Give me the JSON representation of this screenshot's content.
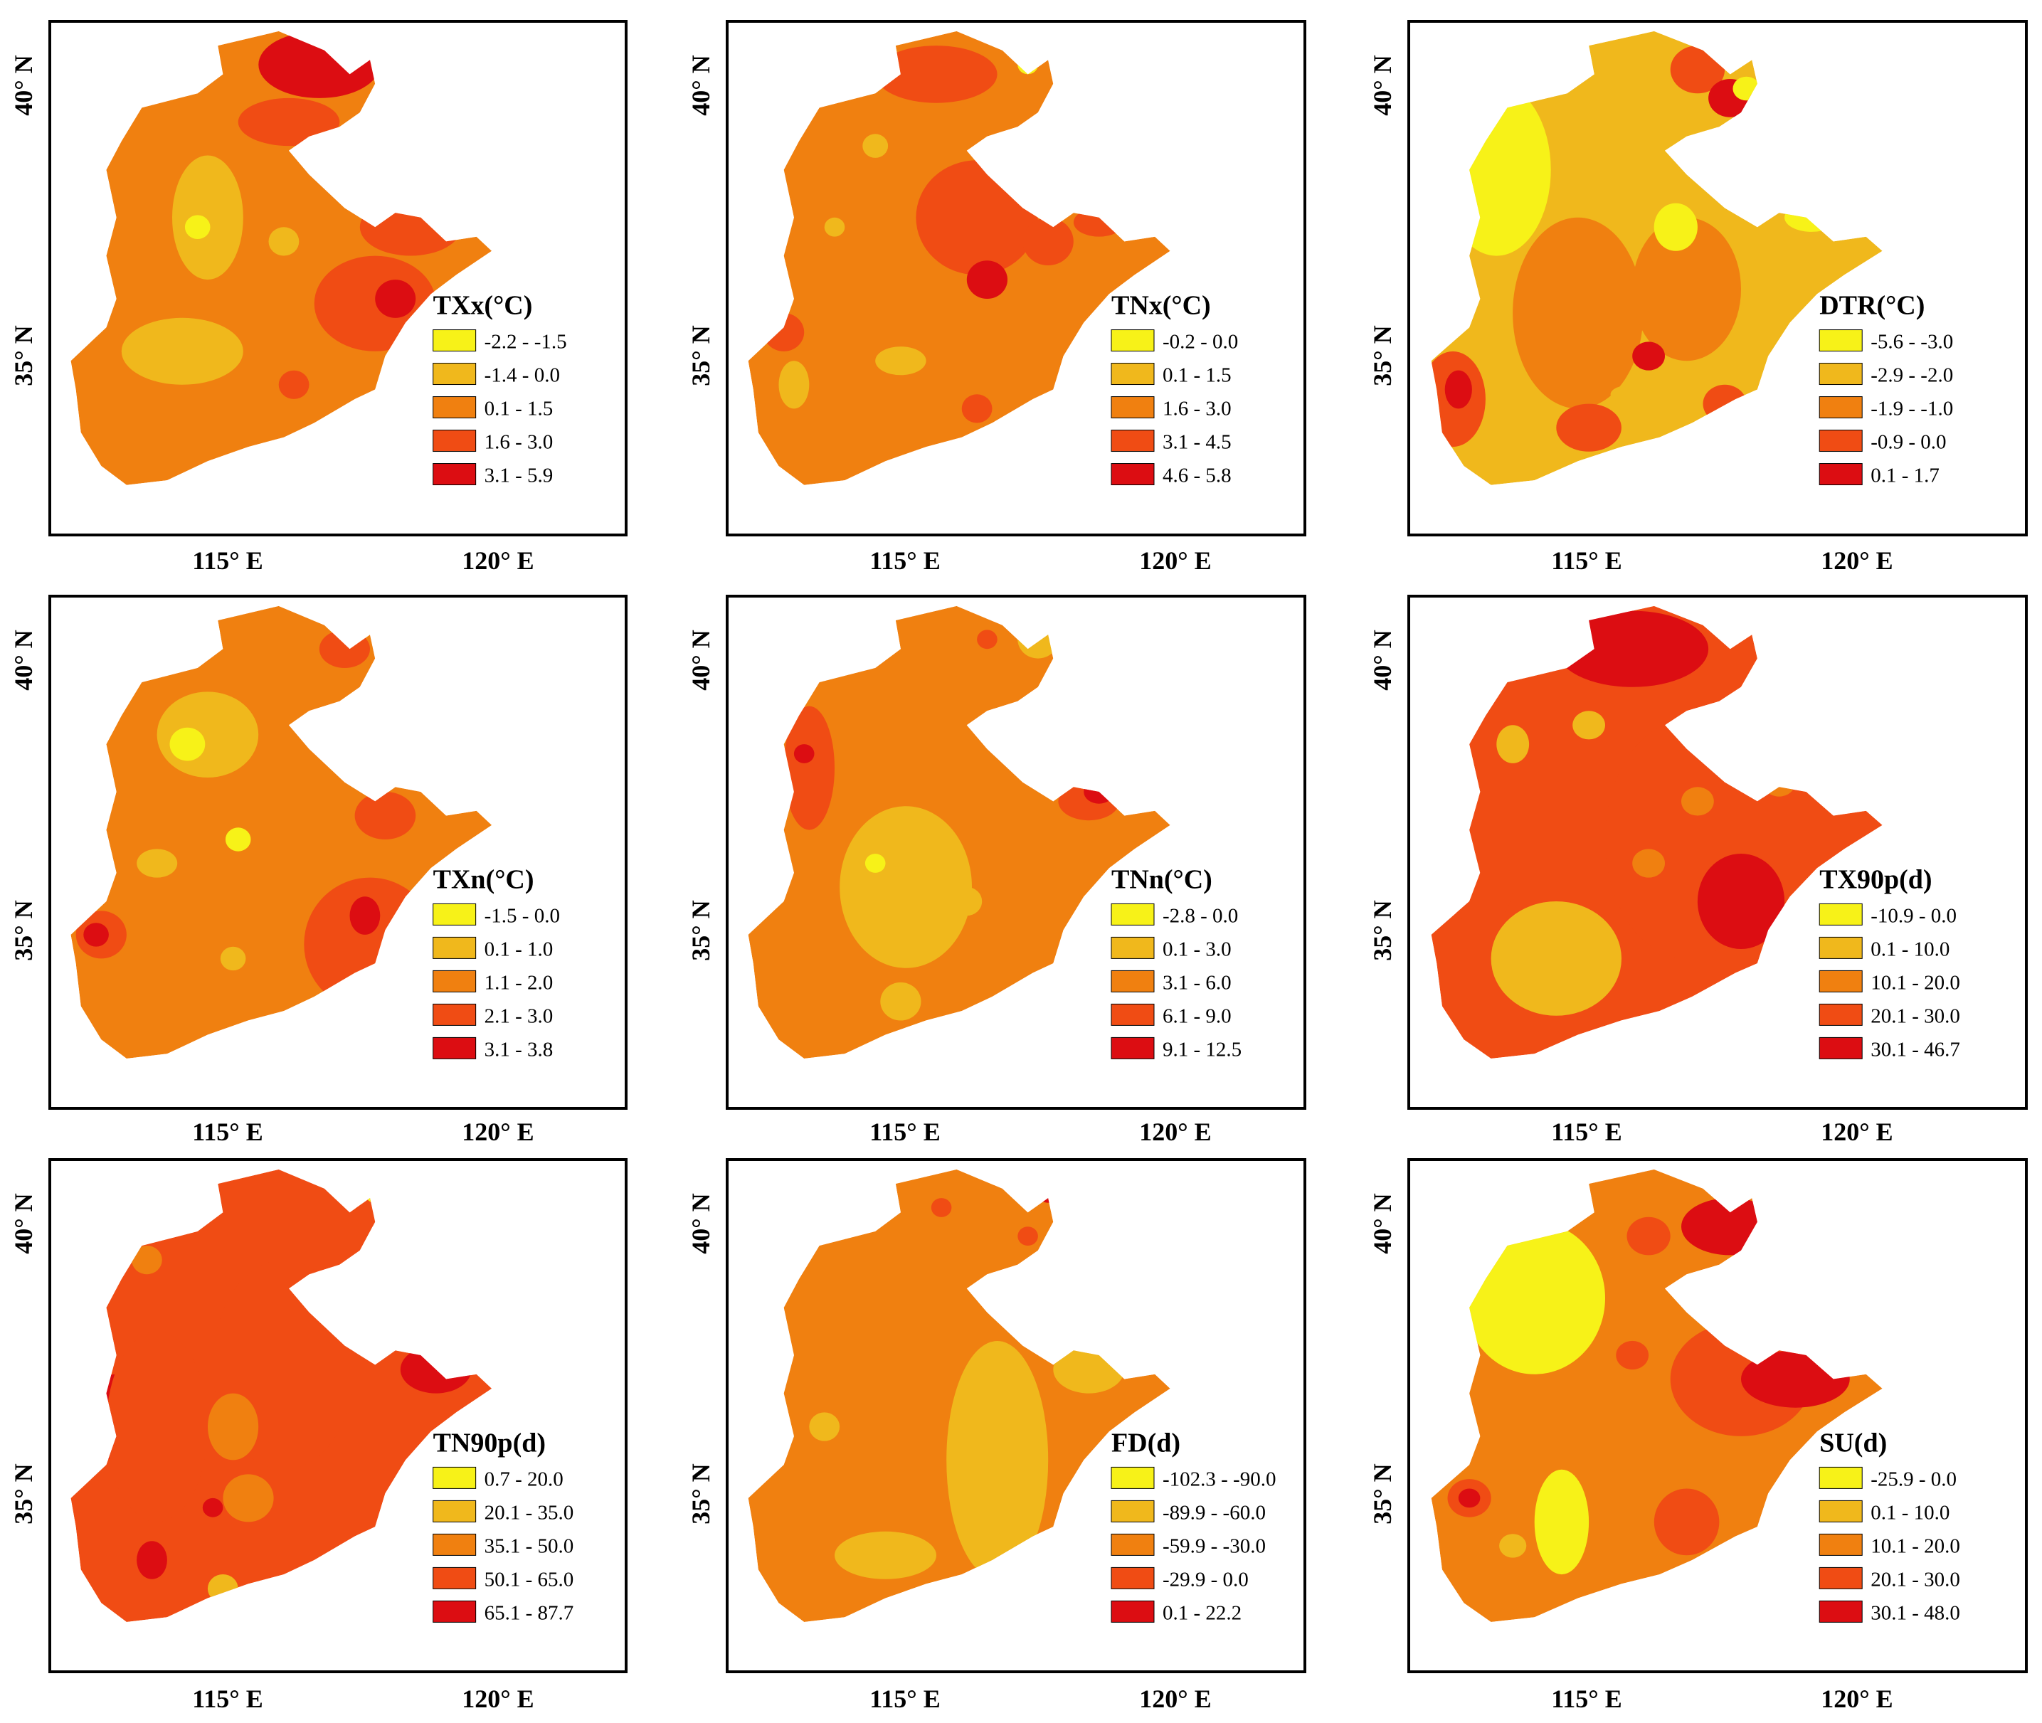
{
  "figure": {
    "description_free": true,
    "panels": [
      {
        "id": "txx",
        "legend_title": "TXx(°C)",
        "classes": [
          "-2.2 - -1.5",
          "-1.4 - 0.0",
          "0.1 - 1.5",
          "1.6 - 3.0",
          "3.1 - 5.9"
        ],
        "base_class": 2,
        "x_ticks": [
          "115° E",
          "120° E"
        ],
        "y_ticks": [
          "40° N",
          "35° N"
        ]
      },
      {
        "id": "tnx",
        "legend_title": "TNx(°C)",
        "classes": [
          "-0.2 - 0.0",
          "0.1 - 1.5",
          "1.6 - 3.0",
          "3.1 - 4.5",
          "4.6 - 5.8"
        ],
        "base_class": 2,
        "x_ticks": [
          "115° E",
          "120° E"
        ],
        "y_ticks": [
          "40° N",
          "35° N"
        ]
      },
      {
        "id": "dtr",
        "legend_title": "DTR(°C)",
        "classes": [
          "-5.6 - -3.0",
          "-2.9 - -2.0",
          "-1.9 - -1.0",
          "-0.9 - 0.0",
          "0.1 - 1.7"
        ],
        "base_class": 1,
        "x_ticks": [
          "115° E",
          "120° E"
        ],
        "y_ticks": [
          "40° N",
          "35° N"
        ]
      },
      {
        "id": "txn",
        "legend_title": "TXn(°C)",
        "classes": [
          "-1.5 - 0.0",
          "0.1 - 1.0",
          "1.1 - 2.0",
          "2.1 - 3.0",
          "3.1 - 3.8"
        ],
        "base_class": 2,
        "x_ticks": [
          "115° E",
          "120° E"
        ],
        "y_ticks": [
          "40° N",
          "35° N"
        ]
      },
      {
        "id": "tnn",
        "legend_title": "TNn(°C)",
        "classes": [
          "-2.8 - 0.0",
          "0.1 - 3.0",
          "3.1 - 6.0",
          "6.1 - 9.0",
          "9.1 - 12.5"
        ],
        "base_class": 2,
        "x_ticks": [
          "115° E",
          "120° E"
        ],
        "y_ticks": [
          "40° N",
          "35° N"
        ]
      },
      {
        "id": "tx90p",
        "legend_title": "TX90p(d)",
        "classes": [
          "-10.9 - 0.0",
          "0.1 - 10.0",
          "10.1 - 20.0",
          "20.1 - 30.0",
          "30.1 - 46.7"
        ],
        "base_class": 3,
        "x_ticks": [
          "115° E",
          "120° E"
        ],
        "y_ticks": [
          "40° N",
          "35° N"
        ]
      },
      {
        "id": "tn90p",
        "legend_title": "TN90p(d)",
        "classes": [
          "0.7 - 20.0",
          "20.1 - 35.0",
          "35.1 - 50.0",
          "50.1 - 65.0",
          "65.1 - 87.7"
        ],
        "base_class": 3,
        "x_ticks": [
          "115° E",
          "120° E"
        ],
        "y_ticks": [
          "40° N",
          "35° N"
        ]
      },
      {
        "id": "fd",
        "legend_title": "FD(d)",
        "classes": [
          "-102.3 - -90.0",
          "-89.9 - -60.0",
          "-59.9 - -30.0",
          "-29.9 - 0.0",
          "0.1 - 22.2"
        ],
        "base_class": 2,
        "x_ticks": [
          "115° E",
          "120° E"
        ],
        "y_ticks": [
          "40° N",
          "35° N"
        ]
      },
      {
        "id": "su",
        "legend_title": "SU(d)",
        "classes": [
          "-25.9 - 0.0",
          "0.1 - 10.0",
          "10.1 - 20.0",
          "20.1 - 30.0",
          "30.1 - 48.0"
        ],
        "base_class": 2,
        "x_ticks": [
          "115° E",
          "120° E"
        ],
        "y_ticks": [
          "40° N",
          "35° N"
        ]
      }
    ],
    "class_colors": [
      "#f7f218",
      "#f0b81c",
      "#f08010",
      "#f04c14",
      "#dc0d12"
    ]
  }
}
